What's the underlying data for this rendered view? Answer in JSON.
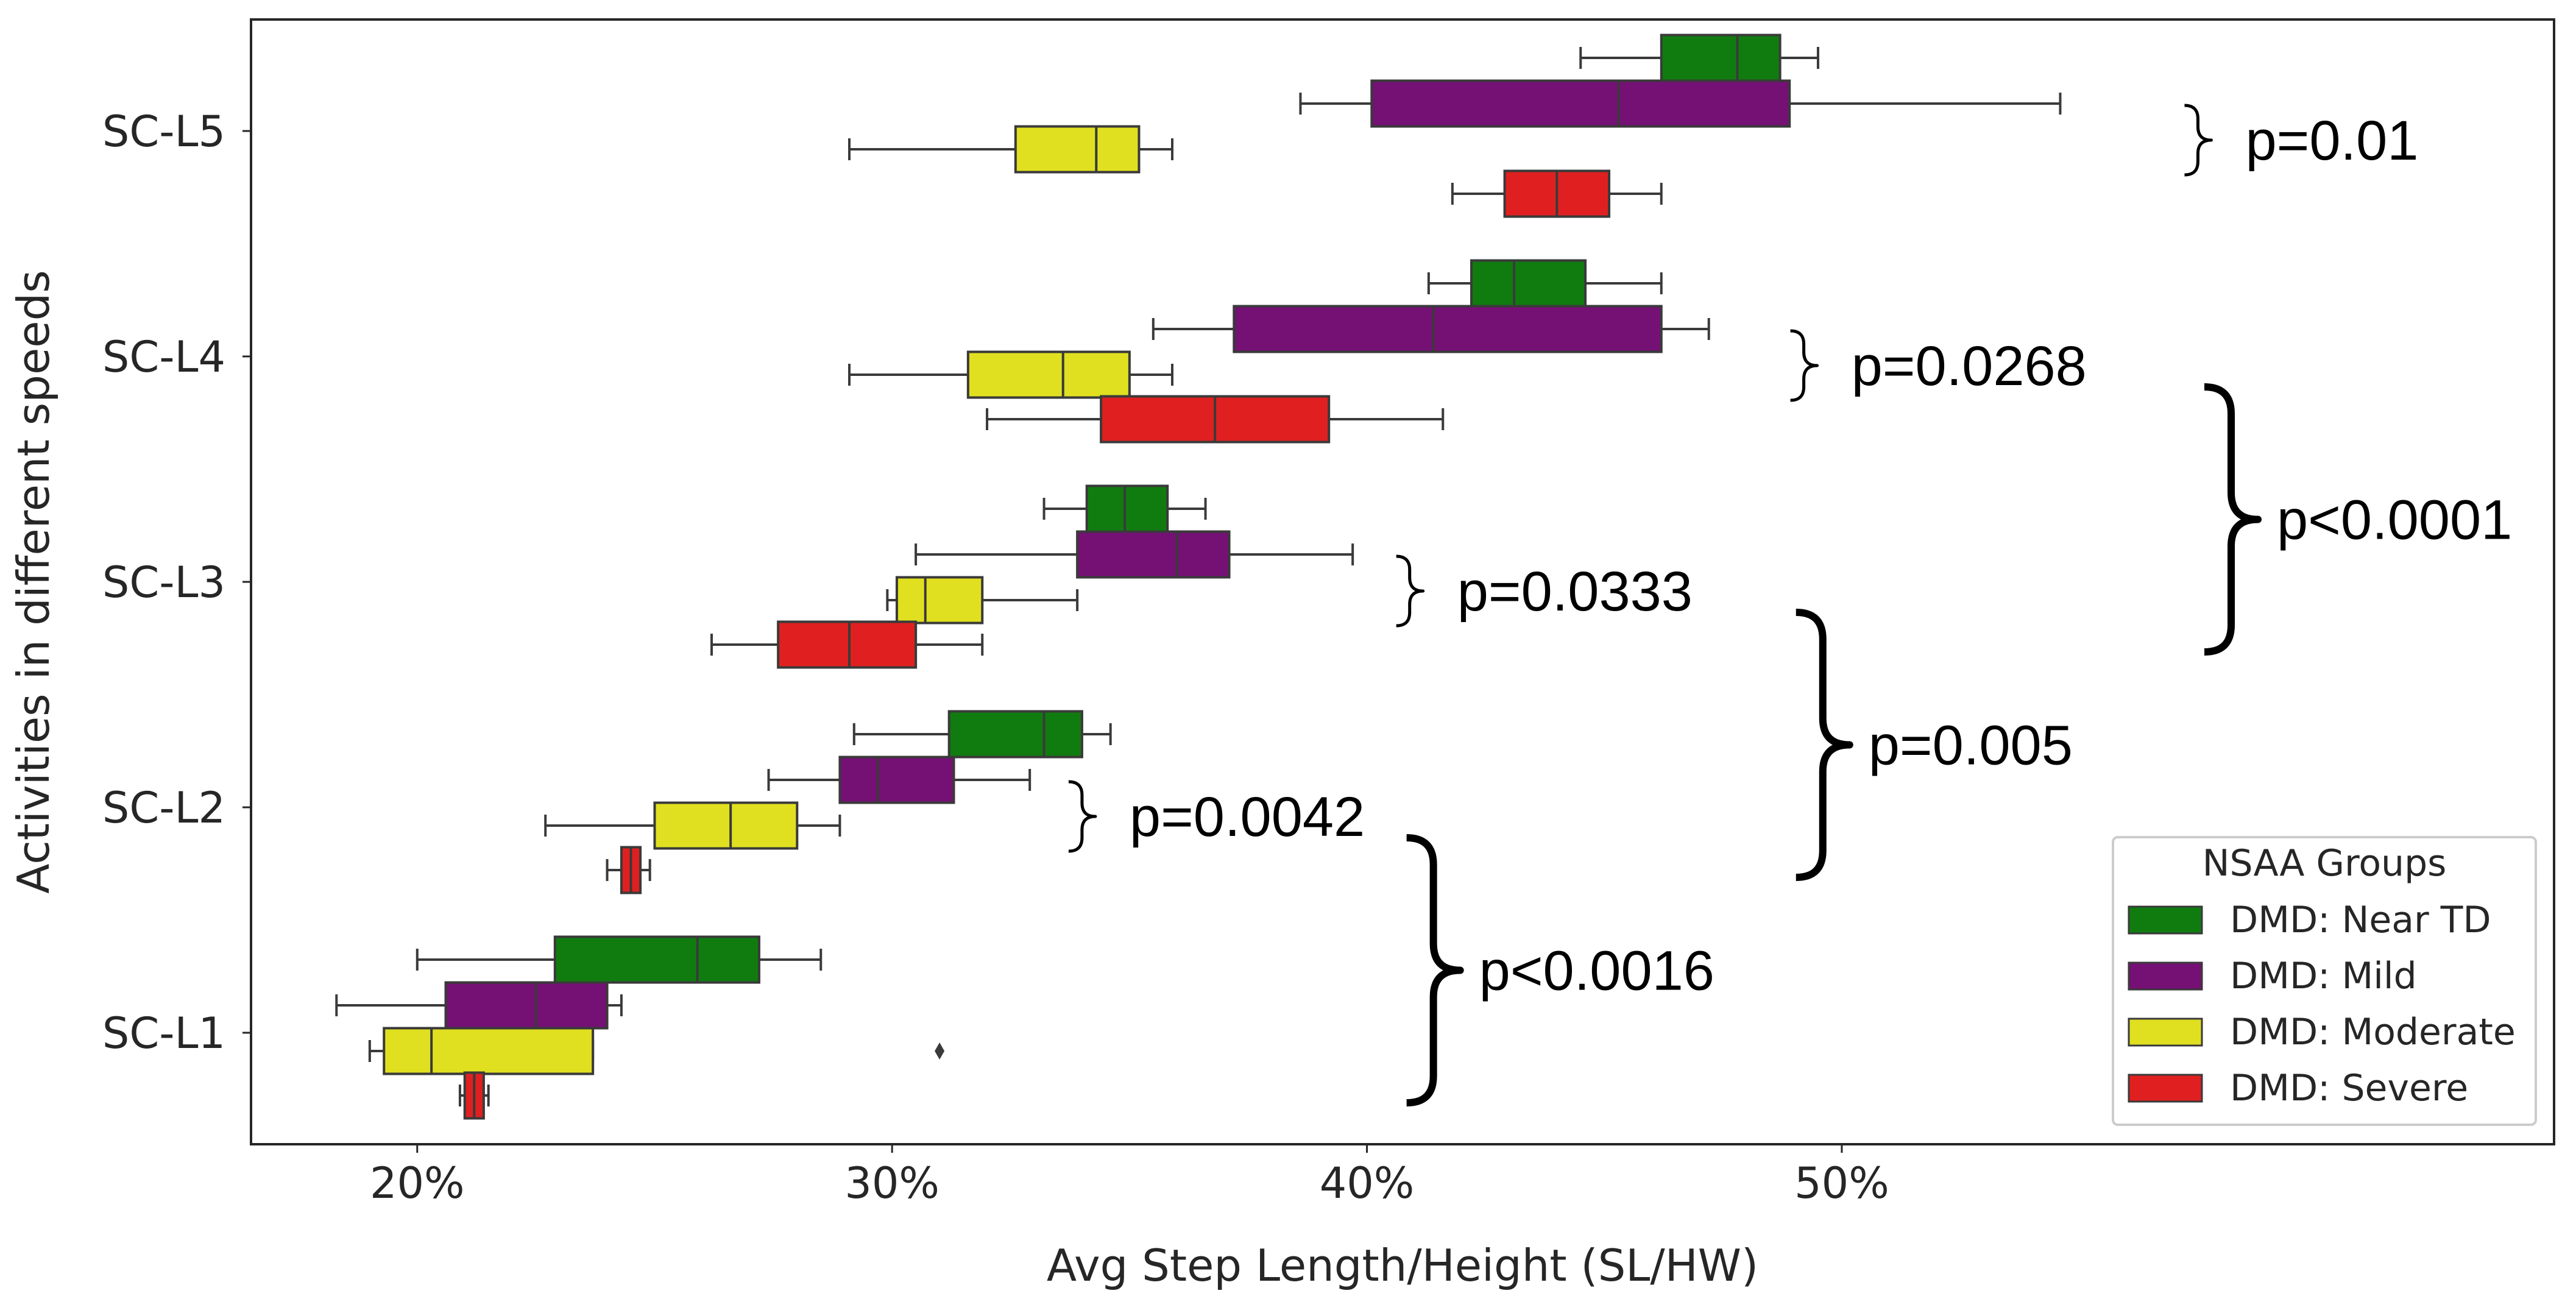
{
  "chart_data": {
    "type": "box",
    "orientation": "horizontal",
    "xlabel": "Avg Step Length/Height (SL/HW)",
    "ylabel": "Activities in different speeds",
    "xlim": [
      16.5,
      65.0
    ],
    "x_ticks": [
      20,
      30,
      40,
      50
    ],
    "x_tick_labels": [
      "20%",
      "30%",
      "40%",
      "50%"
    ],
    "grid": false,
    "categories": [
      "SC-L5",
      "SC-L4",
      "SC-L3",
      "SC-L2",
      "SC-L1"
    ],
    "legend": {
      "title": "NSAA Groups",
      "placement": "lower-right",
      "entries": [
        {
          "label": "DMD: Near TD",
          "color": "#107c10"
        },
        {
          "label": "DMD: Mild",
          "color": "#751075"
        },
        {
          "label": "DMD: Moderate",
          "color": "#e0e020"
        },
        {
          "label": "DMD: Severe",
          "color": "#e02020"
        }
      ]
    },
    "series": [
      {
        "name": "DMD: Near TD",
        "color": "#107c10",
        "boxes": [
          {
            "category": "SC-L5",
            "whisker_low": 44.5,
            "q1": 46.2,
            "median": 47.8,
            "q3": 48.7,
            "whisker_high": 49.5,
            "outliers": []
          },
          {
            "category": "SC-L4",
            "whisker_low": 41.3,
            "q1": 42.2,
            "median": 43.1,
            "q3": 44.6,
            "whisker_high": 46.2,
            "outliers": []
          },
          {
            "category": "SC-L3",
            "whisker_low": 33.2,
            "q1": 34.1,
            "median": 34.9,
            "q3": 35.8,
            "whisker_high": 36.6,
            "outliers": []
          },
          {
            "category": "SC-L2",
            "whisker_low": 29.2,
            "q1": 31.2,
            "median": 33.2,
            "q3": 34.0,
            "whisker_high": 34.6,
            "outliers": []
          },
          {
            "category": "SC-L1",
            "whisker_low": 20.0,
            "q1": 22.9,
            "median": 25.9,
            "q3": 27.2,
            "whisker_high": 28.5,
            "outliers": []
          }
        ]
      },
      {
        "name": "DMD: Mild",
        "color": "#751075",
        "boxes": [
          {
            "category": "SC-L5",
            "whisker_low": 38.6,
            "q1": 40.1,
            "median": 45.3,
            "q3": 48.9,
            "whisker_high": 54.6,
            "outliers": []
          },
          {
            "category": "SC-L4",
            "whisker_low": 35.5,
            "q1": 37.2,
            "median": 41.4,
            "q3": 46.2,
            "whisker_high": 47.2,
            "outliers": []
          },
          {
            "category": "SC-L3",
            "whisker_low": 30.5,
            "q1": 33.9,
            "median": 36.0,
            "q3": 37.1,
            "whisker_high": 39.7,
            "outliers": []
          },
          {
            "category": "SC-L2",
            "whisker_low": 27.4,
            "q1": 28.9,
            "median": 29.7,
            "q3": 31.3,
            "whisker_high": 32.9,
            "outliers": []
          },
          {
            "category": "SC-L1",
            "whisker_low": 18.3,
            "q1": 20.6,
            "median": 22.5,
            "q3": 24.0,
            "whisker_high": 24.3,
            "outliers": []
          }
        ]
      },
      {
        "name": "DMD: Moderate",
        "color": "#e0e020",
        "boxes": [
          {
            "category": "SC-L5",
            "whisker_low": 29.1,
            "q1": 32.6,
            "median": 34.3,
            "q3": 35.2,
            "whisker_high": 35.9,
            "outliers": []
          },
          {
            "category": "SC-L4",
            "whisker_low": 29.1,
            "q1": 31.6,
            "median": 33.6,
            "q3": 35.0,
            "whisker_high": 35.9,
            "outliers": []
          },
          {
            "category": "SC-L3",
            "whisker_low": 29.9,
            "q1": 30.1,
            "median": 30.7,
            "q3": 31.9,
            "whisker_high": 33.9,
            "outliers": []
          },
          {
            "category": "SC-L2",
            "whisker_low": 22.7,
            "q1": 25.0,
            "median": 26.6,
            "q3": 28.0,
            "whisker_high": 28.9,
            "outliers": []
          },
          {
            "category": "SC-L1",
            "whisker_low": 19.0,
            "q1": 19.3,
            "median": 20.3,
            "q3": 23.7,
            "whisker_high": 23.7,
            "outliers": [
              31.0
            ]
          }
        ]
      },
      {
        "name": "DMD: Severe",
        "color": "#e02020",
        "boxes": [
          {
            "category": "SC-L5",
            "whisker_low": 41.8,
            "q1": 42.9,
            "median": 44.0,
            "q3": 45.1,
            "whisker_high": 46.2,
            "outliers": []
          },
          {
            "category": "SC-L4",
            "whisker_low": 32.0,
            "q1": 34.4,
            "median": 36.8,
            "q3": 39.2,
            "whisker_high": 41.6,
            "outliers": []
          },
          {
            "category": "SC-L3",
            "whisker_low": 26.2,
            "q1": 27.6,
            "median": 29.1,
            "q3": 30.5,
            "whisker_high": 31.9,
            "outliers": []
          },
          {
            "category": "SC-L2",
            "whisker_low": 24.0,
            "q1": 24.3,
            "median": 24.5,
            "q3": 24.7,
            "whisker_high": 24.9,
            "outliers": []
          },
          {
            "category": "SC-L1",
            "whisker_low": 20.9,
            "q1": 21.0,
            "median": 21.2,
            "q3": 21.4,
            "whisker_high": 21.5,
            "outliers": []
          }
        ]
      }
    ],
    "annotations": [
      {
        "text": "p=0.01",
        "bracket": "small",
        "category_span": [
          "SC-L5"
        ],
        "x": 57.5
      },
      {
        "text": "p=0.0268",
        "bracket": "small",
        "category_span": [
          "SC-L4"
        ],
        "x": 49.2
      },
      {
        "text": "p=0.0333",
        "bracket": "small",
        "category_span": [
          "SC-L3"
        ],
        "x": 40.9
      },
      {
        "text": "p=0.0042",
        "bracket": "small",
        "category_span": [
          "SC-L2"
        ],
        "x": 34.0
      },
      {
        "text": "p<0.0016",
        "bracket": "large",
        "category_span": [
          "SC-L2",
          "SC-L1"
        ],
        "x": 41.4
      },
      {
        "text": "p=0.005",
        "bracket": "large",
        "category_span": [
          "SC-L3",
          "SC-L2"
        ],
        "x": 49.6
      },
      {
        "text": "p<0.0001",
        "bracket": "large",
        "category_span": [
          "SC-L4",
          "SC-L3"
        ],
        "x": 58.2
      }
    ]
  }
}
